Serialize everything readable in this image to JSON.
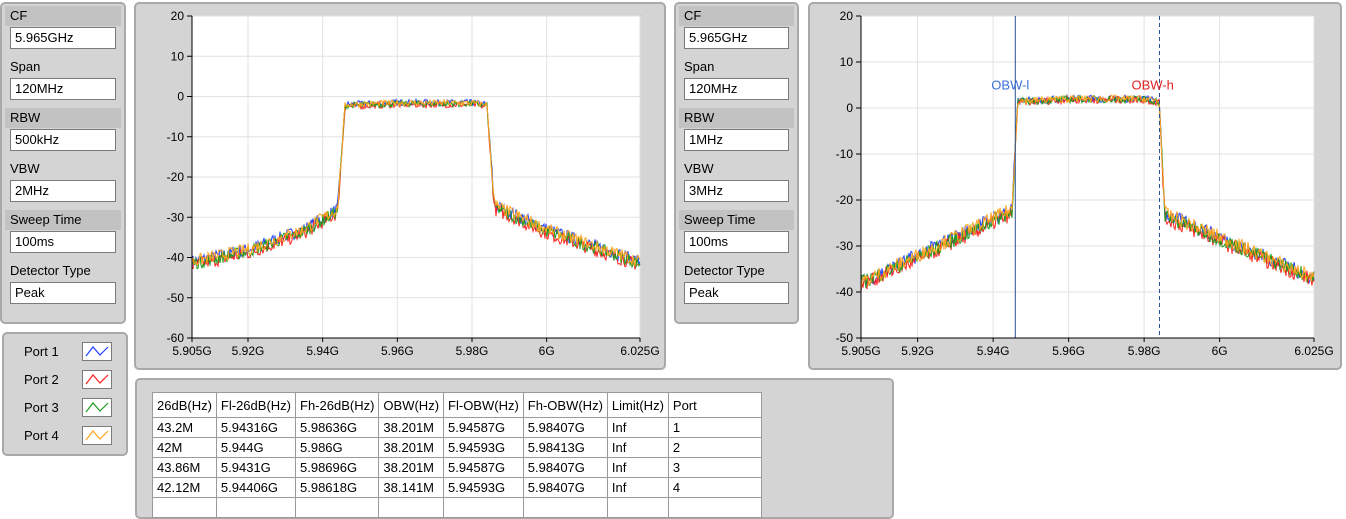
{
  "left_params": {
    "cf_label": "CF",
    "cf_value": "5.965GHz",
    "span_label": "Span",
    "span_value": "120MHz",
    "rbw_label": "RBW",
    "rbw_value": "500kHz",
    "vbw_label": "VBW",
    "vbw_value": "2MHz",
    "sweep_label": "Sweep Time",
    "sweep_value": "100ms",
    "detector_label": "Detector Type",
    "detector_value": "Peak"
  },
  "right_params": {
    "cf_label": "CF",
    "cf_value": "5.965GHz",
    "span_label": "Span",
    "span_value": "120MHz",
    "rbw_label": "RBW",
    "rbw_value": "1MHz",
    "vbw_label": "VBW",
    "vbw_value": "3MHz",
    "sweep_label": "Sweep Time",
    "sweep_value": "100ms",
    "detector_label": "Detector Type",
    "detector_value": "Peak"
  },
  "legend": [
    {
      "name": "Port 1",
      "color": "#1f3fff"
    },
    {
      "name": "Port 2",
      "color": "#ff2020"
    },
    {
      "name": "Port 3",
      "color": "#1e9b1e"
    },
    {
      "name": "Port 4",
      "color": "#ffa41e"
    }
  ],
  "table": {
    "headers": [
      "26dB(Hz)",
      "Fl-26dB(Hz)",
      "Fh-26dB(Hz)",
      "OBW(Hz)",
      "Fl-OBW(Hz)",
      "Fh-OBW(Hz)",
      "Limit(Hz)",
      "Port"
    ],
    "rows": [
      [
        "43.2M",
        "5.94316G",
        "5.98636G",
        "38.201M",
        "5.94587G",
        "5.98407G",
        "Inf",
        "1"
      ],
      [
        "42M",
        "5.944G",
        "5.986G",
        "38.201M",
        "5.94593G",
        "5.98413G",
        "Inf",
        "2"
      ],
      [
        "43.86M",
        "5.9431G",
        "5.98696G",
        "38.201M",
        "5.94587G",
        "5.98407G",
        "Inf",
        "3"
      ],
      [
        "42.12M",
        "5.94406G",
        "5.98618G",
        "38.141M",
        "5.94593G",
        "5.98407G",
        "Inf",
        "4"
      ]
    ]
  },
  "chart_data": [
    {
      "type": "line",
      "title": "",
      "xlabel": "",
      "ylabel": "",
      "xlim": [
        5.905,
        6.025
      ],
      "ylim": [
        -60,
        20
      ],
      "x_ticks": [
        "5.905G",
        "5.92G",
        "5.94G",
        "5.96G",
        "5.98G",
        "6G",
        "6.025G"
      ],
      "y_ticks": [
        "20",
        "10",
        "0",
        "-10",
        "-20",
        "-30",
        "-40",
        "-50",
        "-60"
      ],
      "grid": true,
      "series": [
        {
          "name": "Port 1",
          "color": "#1f3fff",
          "x": [
            5.905,
            5.92,
            5.935,
            5.944,
            5.946,
            5.96,
            5.98,
            5.984,
            5.986,
            6.0,
            6.025
          ],
          "y": [
            -41,
            -38,
            -33,
            -28,
            -2,
            -1.5,
            -1.5,
            -2,
            -27,
            -33,
            -41
          ]
        },
        {
          "name": "Port 2",
          "color": "#ff2020",
          "x": [
            5.905,
            5.92,
            5.935,
            5.944,
            5.946,
            5.96,
            5.98,
            5.984,
            5.986,
            6.0,
            6.025
          ],
          "y": [
            -42,
            -39,
            -34,
            -29,
            -2.5,
            -2,
            -2,
            -2.5,
            -28,
            -34,
            -42
          ]
        },
        {
          "name": "Port 3",
          "color": "#1e9b1e",
          "x": [
            5.905,
            5.92,
            5.935,
            5.944,
            5.946,
            5.96,
            5.98,
            5.984,
            5.986,
            6.0,
            6.025
          ],
          "y": [
            -41.5,
            -38.5,
            -33.5,
            -28.5,
            -2.2,
            -1.8,
            -1.8,
            -2.2,
            -27.5,
            -33.5,
            -41.5
          ]
        },
        {
          "name": "Port 4",
          "color": "#ffa41e",
          "x": [
            5.905,
            5.92,
            5.935,
            5.944,
            5.946,
            5.96,
            5.98,
            5.984,
            5.986,
            6.0,
            6.025
          ],
          "y": [
            -41,
            -38,
            -33,
            -28,
            -2,
            -1.6,
            -1.6,
            -2,
            -27,
            -33,
            -41
          ]
        }
      ]
    },
    {
      "type": "line",
      "title": "",
      "xlabel": "",
      "ylabel": "",
      "xlim": [
        5.905,
        6.025
      ],
      "ylim": [
        -50,
        20
      ],
      "x_ticks": [
        "5.905G",
        "5.92G",
        "5.94G",
        "5.96G",
        "5.98G",
        "6G",
        "6.025G"
      ],
      "y_ticks": [
        "20",
        "10",
        "0",
        "-10",
        "-20",
        "-30",
        "-40",
        "-50"
      ],
      "grid": true,
      "markers": [
        {
          "label": "OBW-l",
          "x": 5.94587,
          "color": "#3a6fd8"
        },
        {
          "label": "OBW-h",
          "x": 5.98407,
          "color": "#e02020"
        }
      ],
      "series": [
        {
          "name": "Port 1",
          "color": "#1f3fff",
          "x": [
            5.905,
            5.92,
            5.935,
            5.945,
            5.9465,
            5.96,
            5.98,
            5.984,
            5.9855,
            6.0,
            6.025
          ],
          "y": [
            -38,
            -32,
            -26,
            -22,
            1.5,
            2,
            2,
            1.5,
            -23,
            -28,
            -37
          ]
        },
        {
          "name": "Port 2",
          "color": "#ff2020",
          "x": [
            5.905,
            5.92,
            5.935,
            5.945,
            5.9465,
            5.96,
            5.98,
            5.984,
            5.9855,
            6.0,
            6.025
          ],
          "y": [
            -38.5,
            -33,
            -27,
            -23,
            1.2,
            1.8,
            1.8,
            1.2,
            -24,
            -29,
            -37.5
          ]
        },
        {
          "name": "Port 3",
          "color": "#1e9b1e",
          "x": [
            5.905,
            5.92,
            5.935,
            5.945,
            5.9465,
            5.96,
            5.98,
            5.984,
            5.9855,
            6.0,
            6.025
          ],
          "y": [
            -38,
            -32.5,
            -26.5,
            -22.5,
            1.4,
            1.9,
            1.9,
            1.4,
            -23.5,
            -28.5,
            -37
          ]
        },
        {
          "name": "Port 4",
          "color": "#ffa41e",
          "x": [
            5.905,
            5.92,
            5.935,
            5.945,
            5.9465,
            5.96,
            5.98,
            5.984,
            5.9855,
            6.0,
            6.025
          ],
          "y": [
            -38,
            -32,
            -26,
            -22,
            1.5,
            2,
            2,
            1.5,
            -23,
            -28,
            -37
          ]
        }
      ]
    }
  ]
}
